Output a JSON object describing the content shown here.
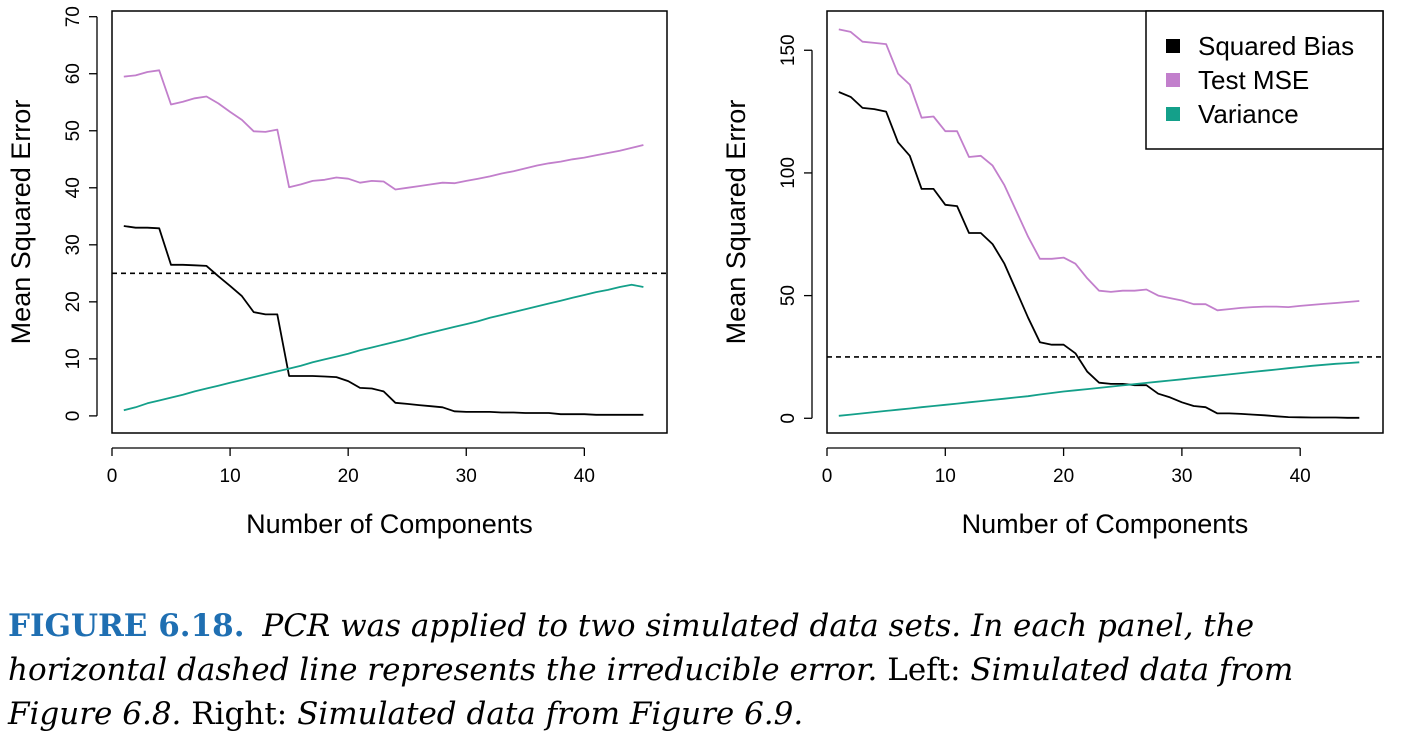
{
  "chart_data": [
    {
      "type": "line",
      "ylabel": "Mean Squared Error",
      "xlabel": "Number of Components",
      "xlim": [
        0,
        47
      ],
      "ylim": [
        -3,
        71
      ],
      "xticks": [
        0,
        10,
        20,
        30,
        40
      ],
      "yticks": [
        0,
        10,
        20,
        30,
        40,
        50,
        60,
        70
      ],
      "grid": false,
      "hline": {
        "y": 25,
        "style": "dashed"
      },
      "series": [
        {
          "name": "Squared Bias",
          "color": "#000000",
          "x": [
            1,
            2,
            3,
            4,
            5,
            6,
            7,
            8,
            9,
            10,
            11,
            12,
            13,
            14,
            15,
            16,
            17,
            18,
            19,
            20,
            21,
            22,
            23,
            24,
            25,
            26,
            27,
            28,
            29,
            30,
            31,
            32,
            33,
            34,
            35,
            36,
            37,
            38,
            39,
            40,
            41,
            42,
            43,
            44,
            45
          ],
          "values": [
            33.3,
            33.0,
            33.0,
            32.9,
            26.5,
            26.5,
            26.4,
            26.3,
            24.5,
            22.8,
            21.0,
            18.2,
            17.8,
            17.8,
            7.0,
            7.0,
            7.0,
            6.9,
            6.8,
            6.1,
            4.9,
            4.8,
            4.3,
            2.3,
            2.1,
            1.9,
            1.7,
            1.5,
            0.8,
            0.7,
            0.7,
            0.7,
            0.6,
            0.6,
            0.5,
            0.5,
            0.5,
            0.3,
            0.3,
            0.3,
            0.2,
            0.2,
            0.2,
            0.2,
            0.2
          ]
        },
        {
          "name": "Test MSE",
          "color": "#c27fcc",
          "x": [
            1,
            2,
            3,
            4,
            5,
            6,
            7,
            8,
            9,
            10,
            11,
            12,
            13,
            14,
            15,
            16,
            17,
            18,
            19,
            20,
            21,
            22,
            23,
            24,
            25,
            26,
            27,
            28,
            29,
            30,
            31,
            32,
            33,
            34,
            35,
            36,
            37,
            38,
            39,
            40,
            41,
            42,
            43,
            44,
            45
          ],
          "values": [
            59.5,
            59.7,
            60.3,
            60.6,
            54.6,
            55.1,
            55.7,
            56.0,
            54.8,
            53.3,
            51.9,
            49.9,
            49.8,
            50.2,
            40.1,
            40.6,
            41.2,
            41.4,
            41.8,
            41.6,
            40.9,
            41.2,
            41.1,
            39.7,
            40.0,
            40.3,
            40.6,
            40.9,
            40.8,
            41.2,
            41.6,
            42.0,
            42.5,
            42.9,
            43.4,
            43.9,
            44.3,
            44.6,
            45.0,
            45.3,
            45.7,
            46.1,
            46.5,
            47.0,
            47.5
          ]
        },
        {
          "name": "Variance",
          "color": "#14a08a",
          "x": [
            1,
            2,
            3,
            4,
            5,
            6,
            7,
            8,
            9,
            10,
            11,
            12,
            13,
            14,
            15,
            16,
            17,
            18,
            19,
            20,
            21,
            22,
            23,
            24,
            25,
            26,
            27,
            28,
            29,
            30,
            31,
            32,
            33,
            34,
            35,
            36,
            37,
            38,
            39,
            40,
            41,
            42,
            43,
            44,
            45
          ],
          "values": [
            1.0,
            1.5,
            2.2,
            2.7,
            3.2,
            3.7,
            4.3,
            4.8,
            5.3,
            5.8,
            6.3,
            6.8,
            7.3,
            7.8,
            8.3,
            8.8,
            9.4,
            9.9,
            10.4,
            10.9,
            11.5,
            12.0,
            12.5,
            13.0,
            13.5,
            14.1,
            14.6,
            15.1,
            15.6,
            16.1,
            16.6,
            17.2,
            17.7,
            18.2,
            18.7,
            19.2,
            19.7,
            20.2,
            20.7,
            21.2,
            21.7,
            22.1,
            22.6,
            23.0,
            22.6
          ]
        }
      ]
    },
    {
      "type": "line",
      "ylabel": "Mean Squared Error",
      "xlabel": "Number of Components",
      "xlim": [
        0,
        47
      ],
      "ylim": [
        -6,
        166
      ],
      "xticks": [
        0,
        10,
        20,
        30,
        40
      ],
      "yticks": [
        0,
        50,
        100,
        150
      ],
      "grid": false,
      "hline": {
        "y": 25,
        "style": "dashed"
      },
      "legend": "top-right",
      "series": [
        {
          "name": "Squared Bias",
          "color": "#000000",
          "x": [
            1,
            2,
            3,
            4,
            5,
            6,
            7,
            8,
            9,
            10,
            11,
            12,
            13,
            14,
            15,
            16,
            17,
            18,
            19,
            20,
            21,
            22,
            23,
            24,
            25,
            26,
            27,
            28,
            29,
            30,
            31,
            32,
            33,
            34,
            35,
            36,
            37,
            38,
            39,
            40,
            41,
            42,
            43,
            44,
            45
          ],
          "values": [
            133,
            131,
            126.5,
            126,
            125,
            112.5,
            107,
            93.5,
            93.5,
            87,
            86.5,
            75.5,
            75.5,
            71,
            63,
            52,
            41,
            31,
            30,
            30,
            26.5,
            19,
            14.5,
            14,
            14,
            13.5,
            13.5,
            10,
            8.5,
            6.5,
            5,
            4.5,
            2,
            2,
            1.8,
            1.5,
            1.2,
            0.8,
            0.5,
            0.4,
            0.3,
            0.3,
            0.3,
            0.2,
            0.2
          ]
        },
        {
          "name": "Test MSE",
          "color": "#c27fcc",
          "x": [
            1,
            2,
            3,
            4,
            5,
            6,
            7,
            8,
            9,
            10,
            11,
            12,
            13,
            14,
            15,
            16,
            17,
            18,
            19,
            20,
            21,
            22,
            23,
            24,
            25,
            26,
            27,
            28,
            29,
            30,
            31,
            32,
            33,
            34,
            35,
            36,
            37,
            38,
            39,
            40,
            41,
            42,
            43,
            44,
            45
          ],
          "values": [
            158.5,
            157.5,
            153.5,
            153,
            152.5,
            140.5,
            136,
            122.5,
            123,
            117,
            117,
            106.5,
            107,
            103,
            95,
            84.5,
            74,
            65,
            65,
            65.5,
            63,
            57,
            52,
            51.5,
            52,
            52,
            52.5,
            50,
            49,
            48,
            46.5,
            46.5,
            44,
            44.5,
            45,
            45.3,
            45.5,
            45.5,
            45.3,
            45.8,
            46.2,
            46.6,
            47,
            47.4,
            47.8
          ]
        },
        {
          "name": "Variance",
          "color": "#14a08a",
          "x": [
            1,
            2,
            3,
            4,
            5,
            6,
            7,
            8,
            9,
            10,
            11,
            12,
            13,
            14,
            15,
            16,
            17,
            18,
            19,
            20,
            21,
            22,
            23,
            24,
            25,
            26,
            27,
            28,
            29,
            30,
            31,
            32,
            33,
            34,
            35,
            36,
            37,
            38,
            39,
            40,
            41,
            42,
            43,
            44,
            45
          ],
          "values": [
            1,
            1.5,
            2,
            2.5,
            3,
            3.5,
            4,
            4.5,
            5,
            5.5,
            6,
            6.5,
            7,
            7.5,
            8,
            8.5,
            9,
            9.7,
            10.3,
            10.9,
            11.4,
            11.9,
            12.4,
            12.9,
            13.4,
            13.9,
            14.4,
            14.9,
            15.4,
            15.9,
            16.4,
            16.9,
            17.4,
            17.9,
            18.4,
            18.9,
            19.4,
            19.9,
            20.4,
            20.9,
            21.4,
            21.8,
            22.2,
            22.5,
            22.8
          ]
        }
      ]
    }
  ],
  "caption": {
    "label": "FIGURE 6.18.",
    "part1": "PCR was applied to two simulated data sets. In each panel, the horizontal dashed line represents the irreducible error.",
    "left_label": "Left:",
    "left_text": "Simulated data from Figure 6.8.",
    "right_label": "Right:",
    "right_text": "Simulated data from Figure 6.9."
  }
}
